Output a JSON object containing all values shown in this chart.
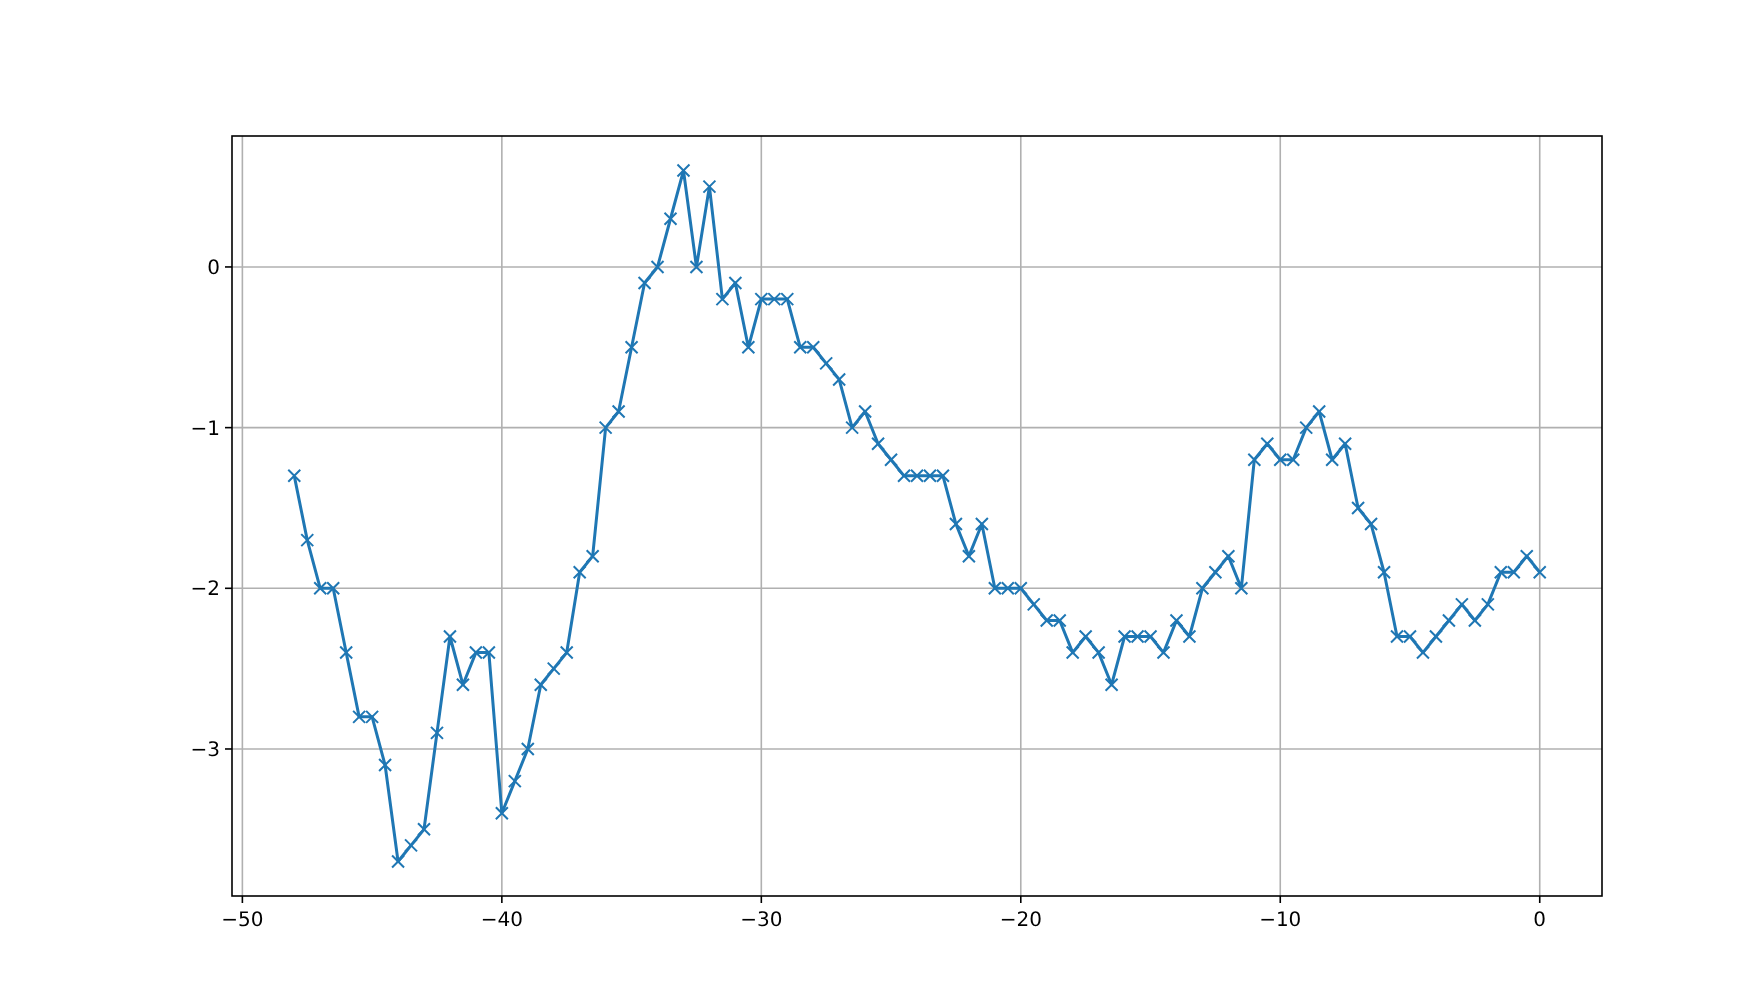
{
  "chart_data": {
    "type": "line",
    "x": [
      -48,
      -47.5,
      -47,
      -46.5,
      -46,
      -45.5,
      -45,
      -44.5,
      -44,
      -43.5,
      -43,
      -42.5,
      -42,
      -41.5,
      -41,
      -40.5,
      -40,
      -39.5,
      -39,
      -38.5,
      -38,
      -37.5,
      -37,
      -36.5,
      -36,
      -35.5,
      -35,
      -34.5,
      -34,
      -33.5,
      -33,
      -32.5,
      -32,
      -31.5,
      -31,
      -30.5,
      -30,
      -29.5,
      -29,
      -28.5,
      -28,
      -27.5,
      -27,
      -26.5,
      -26,
      -25.5,
      -25,
      -24.5,
      -24,
      -23.5,
      -23,
      -22.5,
      -22,
      -21.5,
      -21,
      -20.5,
      -20,
      -19.5,
      -19,
      -18.5,
      -18,
      -17.5,
      -17,
      -16.5,
      -16,
      -15.5,
      -15,
      -14.5,
      -14,
      -13.5,
      -13,
      -12.5,
      -12,
      -11.5,
      -11,
      -10.5,
      -10,
      -9.5,
      -9,
      -8.5,
      -8,
      -7.5,
      -7,
      -6.5,
      -6,
      -5.5,
      -5,
      -4.5,
      -4,
      -3.5,
      -3,
      -2.5,
      -2,
      -1.5,
      -1,
      -0.5,
      0
    ],
    "series": [
      {
        "color": "#1f77b4",
        "values": [
          -1.3,
          -1.7,
          -2.0,
          -2.0,
          -2.4,
          -2.8,
          -2.8,
          -3.1,
          -3.7,
          -3.6,
          -3.5,
          -2.9,
          -2.3,
          -2.6,
          -2.4,
          -2.4,
          -3.4,
          -3.2,
          -3.0,
          -2.6,
          -2.5,
          -2.4,
          -1.9,
          -1.8,
          -1.0,
          -0.9,
          -0.5,
          -0.1,
          0.0,
          0.3,
          0.6,
          0.0,
          0.5,
          -0.2,
          -0.1,
          -0.5,
          -0.2,
          -0.2,
          -0.2,
          -0.5,
          -0.5,
          -0.6,
          -0.7,
          -1.0,
          -0.9,
          -1.1,
          -1.2,
          -1.3,
          -1.3,
          -1.3,
          -1.3,
          -1.6,
          -1.8,
          -1.6,
          -2.0,
          -2.0,
          -2.0,
          -2.1,
          -2.2,
          -2.2,
          -2.4,
          -2.3,
          -2.4,
          -2.6,
          -2.3,
          -2.3,
          -2.3,
          -2.4,
          -2.2,
          -2.3,
          -2.0,
          -1.9,
          -1.8,
          -2.0,
          -1.2,
          -1.1,
          -1.2,
          -1.2,
          -1.0,
          -0.9,
          -1.2,
          -1.1,
          -1.5,
          -1.6,
          -1.9,
          -2.3,
          -2.3,
          -2.4,
          -2.3,
          -2.2,
          -2.1,
          -2.2,
          -2.1,
          -1.9,
          -1.9,
          -1.8,
          -1.9
        ]
      }
    ],
    "xlim": [
      -50.4,
      2.4
    ],
    "xticks": [
      -50,
      -40,
      -30,
      -20,
      -10,
      0
    ],
    "ylim": [
      -3.915,
      0.815
    ],
    "yticks": [
      -3,
      -2,
      -1,
      0
    ],
    "grid": true,
    "marker": "cross",
    "line_style": "solid"
  }
}
